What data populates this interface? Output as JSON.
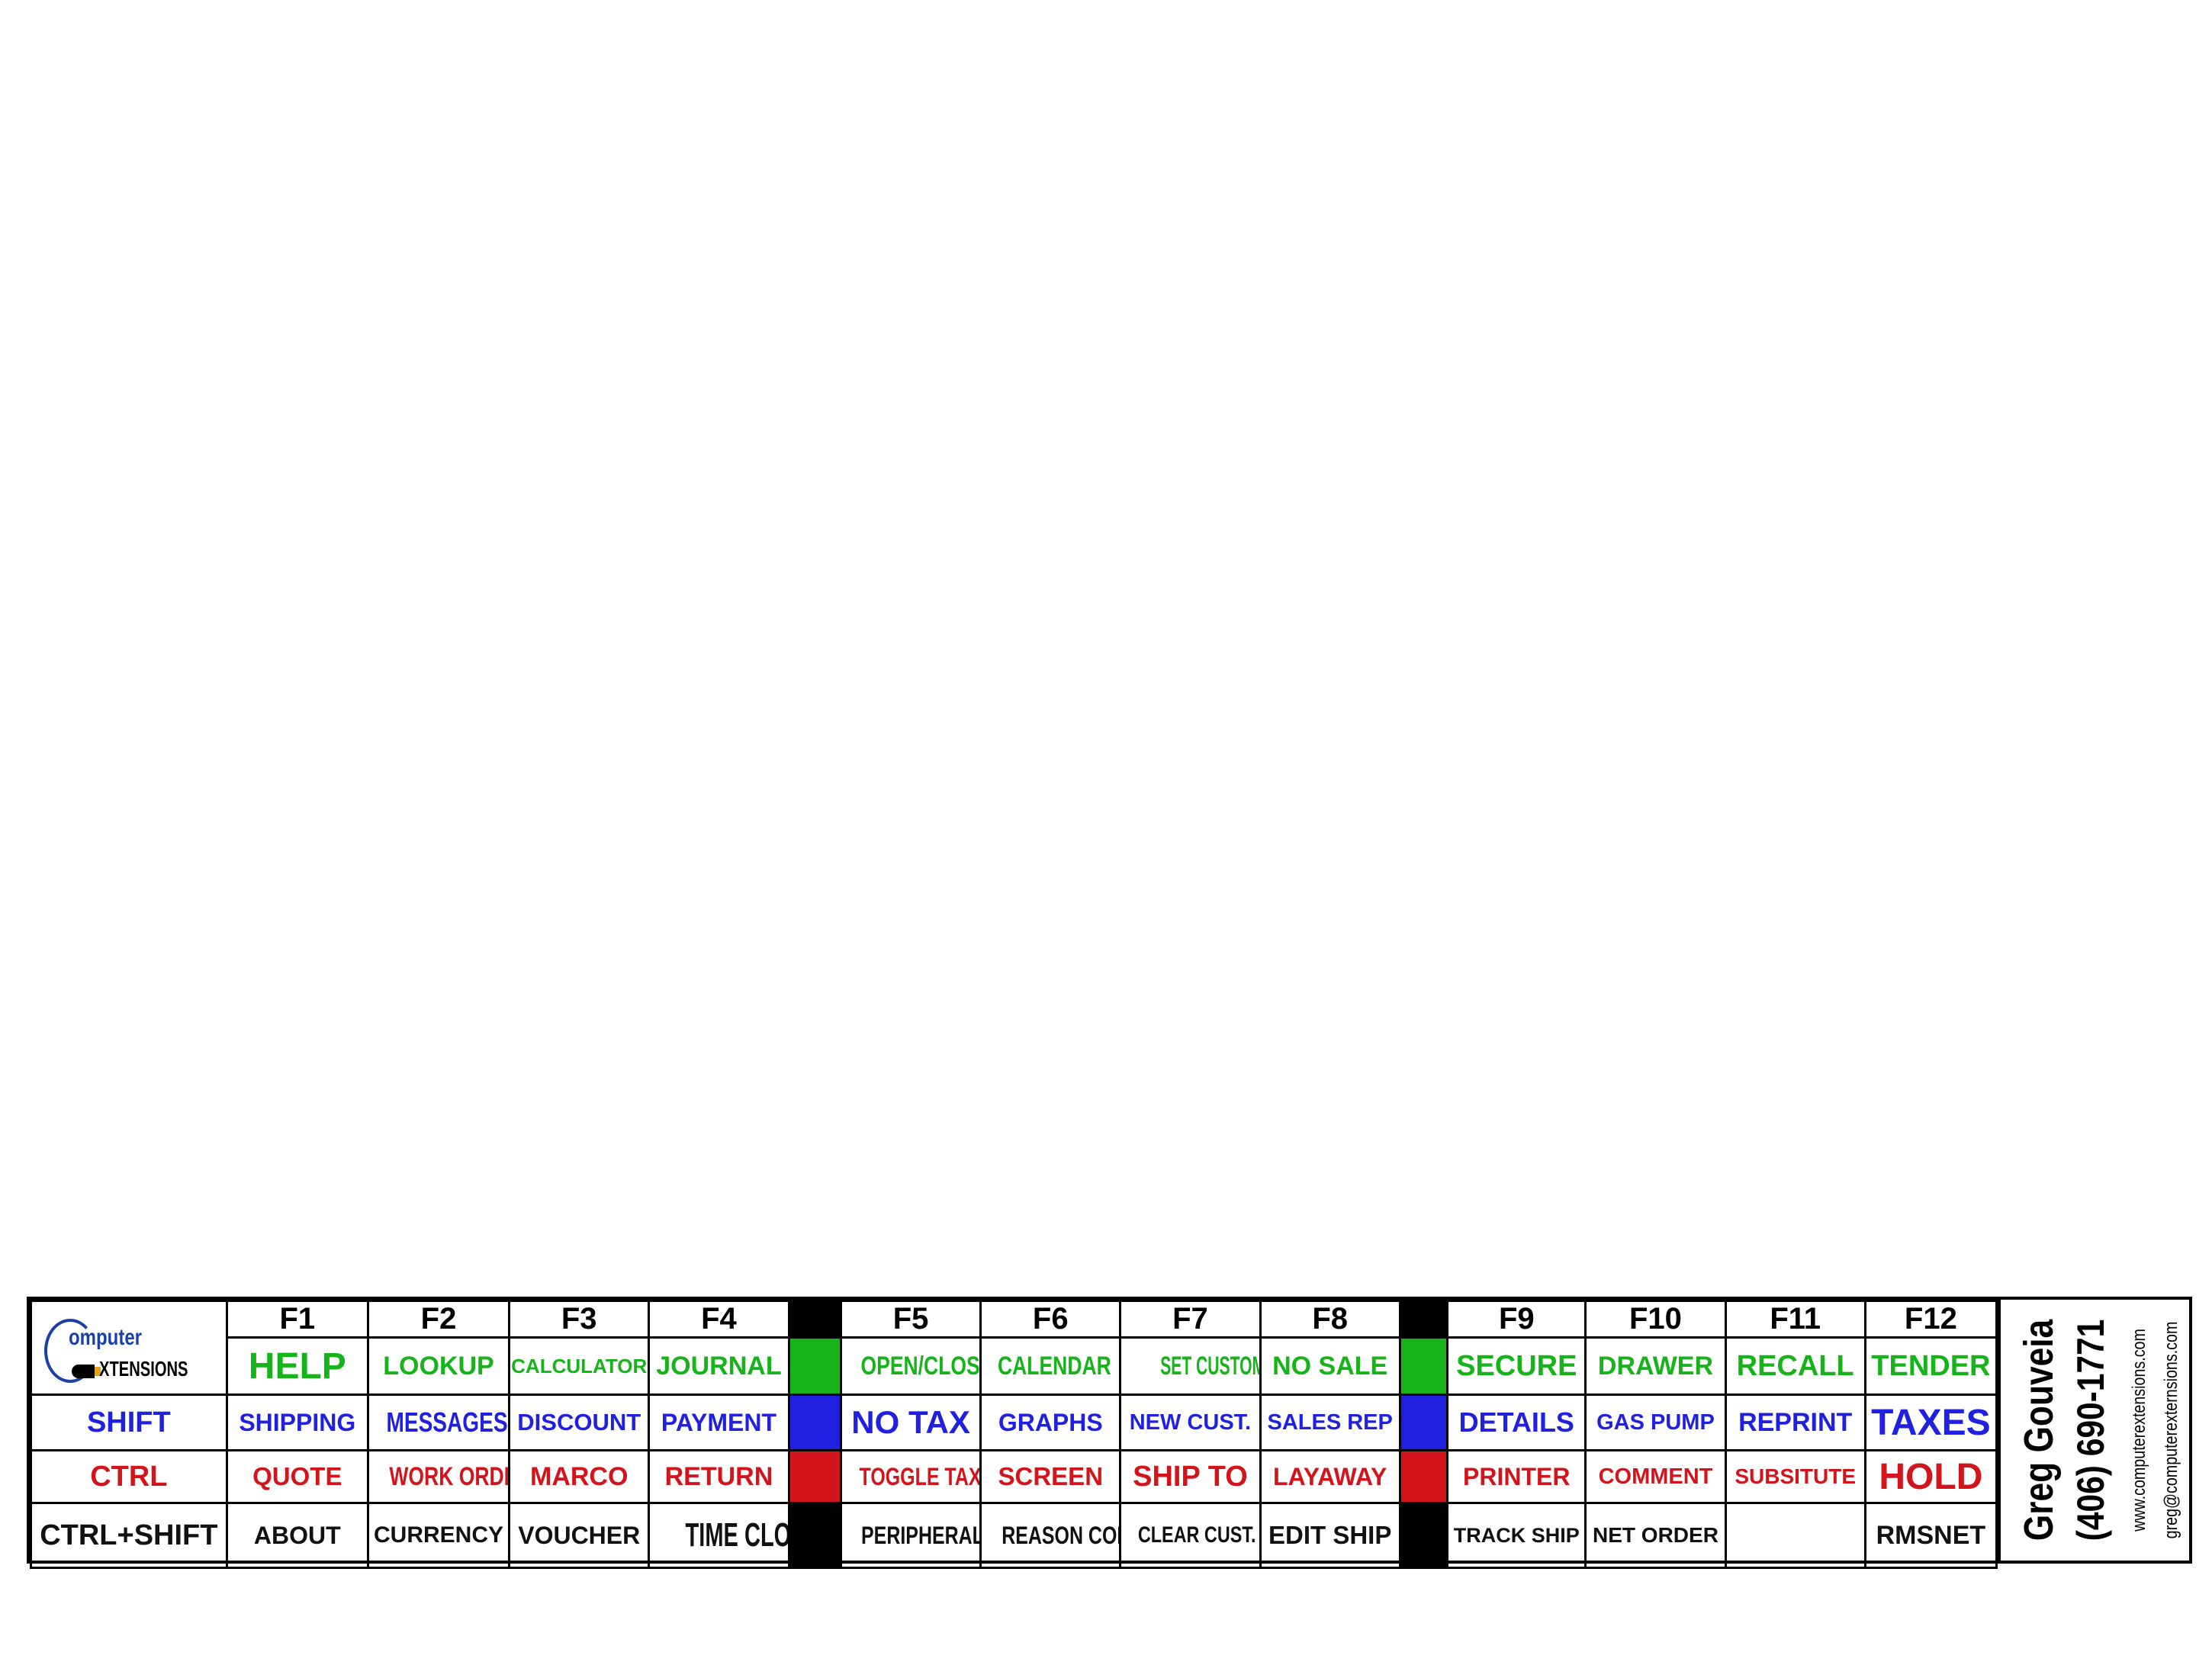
{
  "logo": {
    "line1": "omputer",
    "line2": "XTENSIONS"
  },
  "headers": [
    "F1",
    "F2",
    "F3",
    "F4",
    "F5",
    "F6",
    "F7",
    "F8",
    "F9",
    "F10",
    "F11",
    "F12"
  ],
  "row_labels": {
    "r1": "",
    "r2": "SHIFT",
    "r3": "CTRL",
    "r4": "CTRL+SHIFT"
  },
  "colors": {
    "green": "#17b31a",
    "blue": "#2020e0",
    "red": "#d4141b",
    "black": "#000000"
  },
  "rows": {
    "r1": [
      "HELP",
      "LOOKUP",
      "CALCULATOR",
      "JOURNAL",
      "OPEN/CLOSE",
      "CALENDAR",
      "SET CUSTOMER",
      "NO SALE",
      "SECURE",
      "DRAWER",
      "RECALL",
      "TENDER"
    ],
    "r2": [
      "SHIPPING",
      "MESSAGES",
      "DISCOUNT",
      "PAYMENT",
      "NO TAX",
      "GRAPHS",
      "NEW CUST.",
      "SALES REP",
      "DETAILS",
      "GAS PUMP",
      "REPRINT",
      "TAXES"
    ],
    "r3": [
      "QUOTE",
      "WORK ORDER",
      "MARCO",
      "RETURN",
      "TOGGLE TAX",
      "SCREEN",
      "SHIP TO",
      "LAYAWAY",
      "PRINTER",
      "COMMENT",
      "SUBSITUTE",
      "HOLD"
    ],
    "r4": [
      "ABOUT",
      "CURRENCY",
      "VOUCHER",
      "TIME CLOCK",
      "PERIPHERALS",
      "REASON CODE",
      "CLEAR CUST.",
      "EDIT SHIP",
      "TRACK SHIP",
      "NET ORDER",
      "",
      "RMSNET"
    ]
  },
  "contact": {
    "name": "Greg Gouveia",
    "phone": "(406) 690-1771",
    "website": "www.computerextensions.com",
    "email": "greg@computerexternsions.com"
  }
}
